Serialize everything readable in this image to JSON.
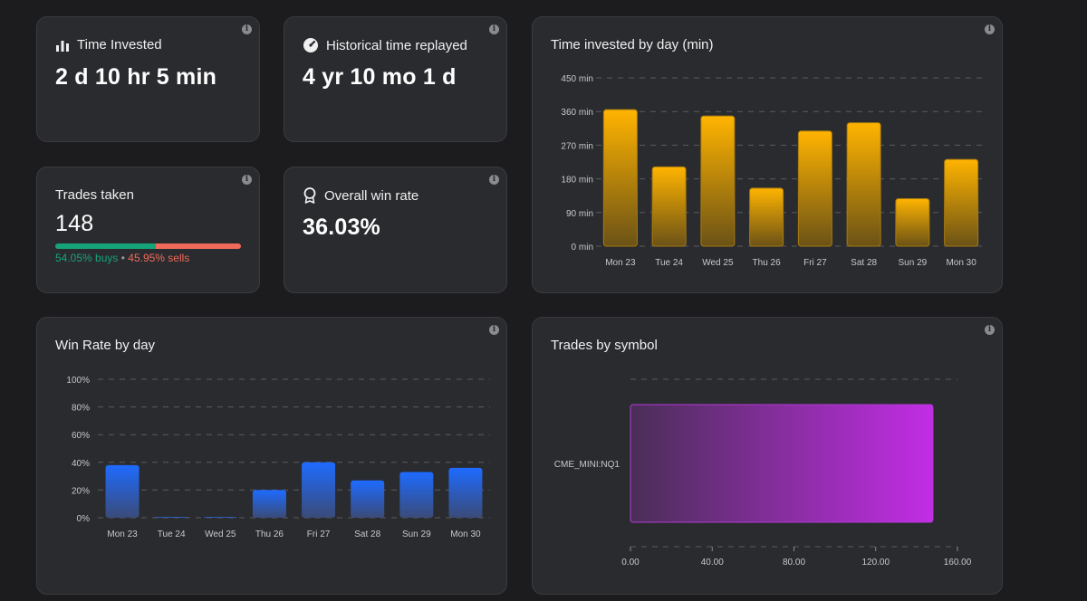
{
  "colors": {
    "buys": "#16a37a",
    "sells": "#f06a5a",
    "amber_top": "#ffb400",
    "amber_bottom": "#6b5216",
    "blue_top": "#1e6bff",
    "blue_bottom": "#3a4b78",
    "purple_left": "#4a2e57",
    "purple_right": "#c22de6"
  },
  "time_invested": {
    "title": "Time Invested",
    "value": "2 d 10 hr 5 min",
    "icon": "bar-chart-icon",
    "info": "i"
  },
  "historical": {
    "title": "Historical time replayed",
    "value": "4 yr 10 mo 1 d",
    "icon": "gauge-icon",
    "info": "i"
  },
  "trades": {
    "title": "Trades taken",
    "value": "148",
    "buys_pct": 54.05,
    "sells_pct": 45.95,
    "buys_label": "54.05% buys",
    "separator": " • ",
    "sells_label": "45.95% sells",
    "info": "i"
  },
  "win_rate": {
    "title": "Overall win rate",
    "value": "36.03%",
    "icon": "award-icon",
    "info": "i"
  },
  "chart_data": [
    {
      "id": "time_by_day",
      "type": "bar",
      "title": "Time invested by day (min)",
      "categories": [
        "Mon 23",
        "Tue 24",
        "Wed 25",
        "Thu 26",
        "Fri 27",
        "Sat 28",
        "Sun 29",
        "Mon 30"
      ],
      "values": [
        365,
        212,
        348,
        155,
        308,
        330,
        127,
        232
      ],
      "ylim": [
        0,
        450
      ],
      "yticks": [
        0,
        90,
        180,
        270,
        360,
        450
      ],
      "tick_labels": [
        "0 min",
        "90 min",
        "180 min",
        "270 min",
        "360 min",
        "450 min"
      ],
      "grid": true,
      "info": "i"
    },
    {
      "id": "winrate_by_day",
      "type": "bar",
      "title": "Win Rate by day",
      "categories": [
        "Mon 23",
        "Tue 24",
        "Wed 25",
        "Thu 26",
        "Fri 27",
        "Sat 28",
        "Sun 29",
        "Mon 30"
      ],
      "values": [
        38,
        0,
        0,
        20,
        40,
        27,
        33,
        36
      ],
      "ylim": [
        0,
        100
      ],
      "yticks": [
        0,
        20,
        40,
        60,
        80,
        100
      ],
      "tick_labels": [
        "0%",
        "20%",
        "40%",
        "60%",
        "80%",
        "100%"
      ],
      "grid": true,
      "info": "i"
    },
    {
      "id": "trades_by_symbol",
      "type": "bar",
      "orientation": "horizontal",
      "title": "Trades by symbol",
      "categories": [
        "CME_MINI:NQ1"
      ],
      "values": [
        148
      ],
      "xlim": [
        0,
        160
      ],
      "xticks": [
        0,
        40,
        80,
        120,
        160
      ],
      "tick_labels": [
        "0.00",
        "40.00",
        "80.00",
        "120.00",
        "160.00"
      ],
      "grid": true,
      "info": "i"
    }
  ]
}
